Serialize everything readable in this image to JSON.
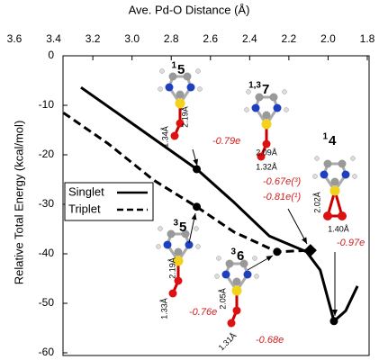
{
  "chart_data": {
    "type": "line",
    "x_label": "Ave. Pd-O Distance (Å)",
    "y_label": "Relative Total Energy (kcal/mol)",
    "xlim": [
      3.6,
      1.8
    ],
    "xticks": [
      3.6,
      3.4,
      3.2,
      {
        "value": 3.0,
        "label": "3.0"
      },
      2.8,
      2.6,
      2.4,
      2.2,
      {
        "value": 2.0,
        "label": "2.0"
      },
      1.8
    ],
    "ylim": [
      -60,
      0
    ],
    "yticks": [
      0,
      -10,
      -20,
      -30,
      -40,
      -50,
      -60
    ],
    "series": [
      {
        "name": "Singlet",
        "color": "#000000",
        "dashed": false,
        "x": [
          3.26,
          2.98,
          2.67,
          2.48,
          2.3,
          2.11,
          2.04,
          1.97,
          1.91,
          1.85
        ],
        "values": [
          -6.4,
          -14.2,
          -22.9,
          -29.6,
          -36.4,
          -39.6,
          -43.3,
          -53.6,
          -51.5,
          -46.5
        ]
      },
      {
        "name": "Triplet",
        "color": "#000000",
        "dashed": true,
        "x": [
          3.35,
          3.12,
          2.89,
          2.67,
          2.48,
          2.26,
          2.09
        ],
        "values": [
          -11.5,
          -17.8,
          -25.1,
          -30.5,
          -35.6,
          -39.6,
          -39.3
        ]
      }
    ],
    "points": [
      {
        "x": 2.67,
        "y": -22.9,
        "shape": "circle"
      },
      {
        "x": 2.67,
        "y": -30.5,
        "shape": "circle"
      },
      {
        "x": 2.26,
        "y": -39.6,
        "shape": "circle"
      },
      {
        "x": 2.09,
        "y": -39.3,
        "shape": "diamond"
      },
      {
        "x": 1.97,
        "y": -53.6,
        "shape": "circle"
      }
    ],
    "structures": [
      {
        "sup": "1",
        "label": "5",
        "distances": [
          "2.19Å",
          "1.34Å"
        ],
        "charges": [
          "-0.79e"
        ]
      },
      {
        "sup": "1,3",
        "label": "7",
        "distances": [
          "2.09Å",
          "1.32Å"
        ],
        "charges": [
          "-0.67e(³)",
          "-0.81e(¹)"
        ]
      },
      {
        "sup": "1",
        "label": "4",
        "distances": [
          "2.02Å",
          "1.40Å"
        ],
        "charges": [
          "-0.97e"
        ]
      },
      {
        "sup": "3",
        "label": "5",
        "distances": [
          "2.19Å",
          "1.33Å"
        ],
        "charges": [
          "-0.76e"
        ]
      },
      {
        "sup": "3",
        "label": "6",
        "distances": [
          "2.05Å",
          "1.31Å"
        ],
        "charges": [
          "-0.68e"
        ]
      }
    ],
    "legend": "left"
  }
}
